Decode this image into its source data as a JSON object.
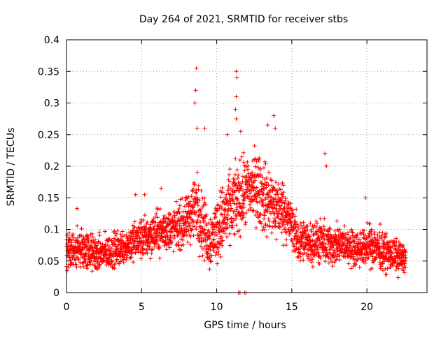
{
  "chart_data": {
    "type": "scatter",
    "title": "Day 264 of 2021, SRMTID for receiver stbs",
    "xlabel": "GPS time / hours",
    "ylabel": "SRMTID / TECUs",
    "xlim": [
      0,
      24
    ],
    "ylim": [
      0,
      0.4
    ],
    "xticks": [
      {
        "value": 0,
        "label": "0"
      },
      {
        "value": 5,
        "label": "5"
      },
      {
        "value": 10,
        "label": "10"
      },
      {
        "value": 15,
        "label": "15"
      },
      {
        "value": 20,
        "label": "20"
      }
    ],
    "yticks": [
      {
        "value": 0,
        "label": "0"
      },
      {
        "value": 0.05,
        "label": "0.05"
      },
      {
        "value": 0.1,
        "label": "0.1"
      },
      {
        "value": 0.15,
        "label": "0.15"
      },
      {
        "value": 0.2,
        "label": "0.2"
      },
      {
        "value": 0.25,
        "label": "0.25"
      },
      {
        "value": 0.3,
        "label": "0.3"
      },
      {
        "value": 0.35,
        "label": "0.35"
      },
      {
        "value": 0.4,
        "label": "0.4"
      }
    ],
    "grid": true,
    "marker": "+",
    "color": "#ff0000",
    "x_range_of_data": [
      0,
      22.6
    ],
    "envelope": [
      {
        "x": 0,
        "mean": 0.065,
        "spread": 0.025
      },
      {
        "x": 1,
        "mean": 0.07,
        "spread": 0.03
      },
      {
        "x": 2,
        "mean": 0.06,
        "spread": 0.025
      },
      {
        "x": 3,
        "mean": 0.065,
        "spread": 0.025
      },
      {
        "x": 4,
        "mean": 0.075,
        "spread": 0.025
      },
      {
        "x": 5,
        "mean": 0.085,
        "spread": 0.03
      },
      {
        "x": 6,
        "mean": 0.095,
        "spread": 0.03
      },
      {
        "x": 7,
        "mean": 0.1,
        "spread": 0.03
      },
      {
        "x": 8,
        "mean": 0.11,
        "spread": 0.035
      },
      {
        "x": 8.6,
        "mean": 0.14,
        "spread": 0.05
      },
      {
        "x": 9.5,
        "mean": 0.08,
        "spread": 0.04
      },
      {
        "x": 10.5,
        "mean": 0.12,
        "spread": 0.05
      },
      {
        "x": 11.5,
        "mean": 0.15,
        "spread": 0.05
      },
      {
        "x": 12.5,
        "mean": 0.17,
        "spread": 0.05
      },
      {
        "x": 13.5,
        "mean": 0.14,
        "spread": 0.05
      },
      {
        "x": 14.5,
        "mean": 0.13,
        "spread": 0.04
      },
      {
        "x": 15.5,
        "mean": 0.08,
        "spread": 0.03
      },
      {
        "x": 16.5,
        "mean": 0.08,
        "spread": 0.03
      },
      {
        "x": 17.5,
        "mean": 0.075,
        "spread": 0.03
      },
      {
        "x": 18.5,
        "mean": 0.075,
        "spread": 0.025
      },
      {
        "x": 19.5,
        "mean": 0.07,
        "spread": 0.025
      },
      {
        "x": 20.5,
        "mean": 0.075,
        "spread": 0.03
      },
      {
        "x": 21.5,
        "mean": 0.06,
        "spread": 0.025
      },
      {
        "x": 22.6,
        "mean": 0.055,
        "spread": 0.02
      }
    ],
    "peaks": [
      {
        "x": 8.65,
        "y": 0.355
      },
      {
        "x": 8.6,
        "y": 0.32
      },
      {
        "x": 8.55,
        "y": 0.3
      },
      {
        "x": 8.7,
        "y": 0.26
      },
      {
        "x": 9.2,
        "y": 0.26
      },
      {
        "x": 11.3,
        "y": 0.35
      },
      {
        "x": 11.35,
        "y": 0.34
      },
      {
        "x": 11.3,
        "y": 0.31
      },
      {
        "x": 11.25,
        "y": 0.29
      },
      {
        "x": 11.3,
        "y": 0.275
      },
      {
        "x": 11.6,
        "y": 0.255
      },
      {
        "x": 10.7,
        "y": 0.25
      },
      {
        "x": 13.4,
        "y": 0.265
      },
      {
        "x": 13.8,
        "y": 0.28
      },
      {
        "x": 13.9,
        "y": 0.26
      },
      {
        "x": 17.2,
        "y": 0.22
      },
      {
        "x": 17.3,
        "y": 0.2
      },
      {
        "x": 19.9,
        "y": 0.15
      },
      {
        "x": 5.2,
        "y": 0.155
      },
      {
        "x": 6.3,
        "y": 0.165
      },
      {
        "x": 0.7,
        "y": 0.133
      },
      {
        "x": 4.6,
        "y": 0.155
      }
    ],
    "near_zero_points": [
      {
        "x": 11.45,
        "y": 0
      },
      {
        "x": 11.55,
        "y": 0
      },
      {
        "x": 11.85,
        "y": 0
      },
      {
        "x": 11.95,
        "y": 0
      }
    ]
  }
}
